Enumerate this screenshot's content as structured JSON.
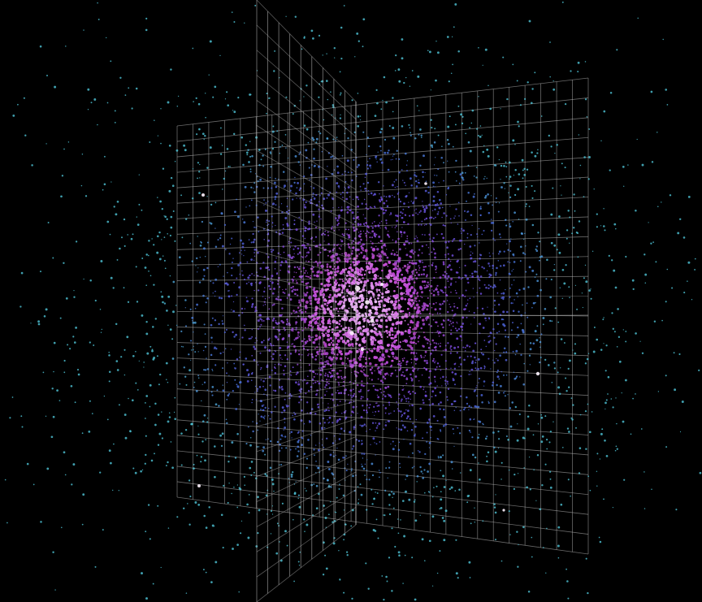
{
  "scene": {
    "kind": "3d-point-cloud",
    "background_color": "#000000",
    "grid_color": "#bfbfbf",
    "grid_planes": [
      "vertical-plane-facing-viewer",
      "vertical-plane-side-on"
    ],
    "color_gradient": [
      "#f4c6ff",
      "#c64cd8",
      "#7a4ce6",
      "#4a6ae0",
      "#4fc6d8"
    ],
    "gradient_direction": "center-outward",
    "bright_core": "center",
    "text": []
  }
}
